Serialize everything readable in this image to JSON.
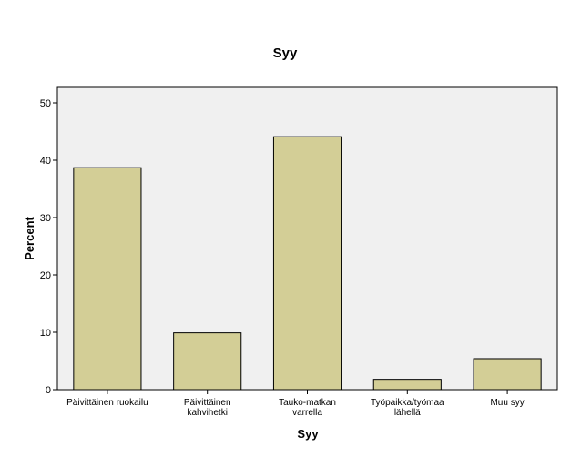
{
  "chart_data": {
    "type": "bar",
    "title": "Syy",
    "xlabel": "Syy",
    "ylabel": "Percent",
    "categories": [
      [
        "Päivittäinen ruokailu"
      ],
      [
        "Päivittäinen",
        "kahvihetki"
      ],
      [
        "Tauko-matkan",
        "varrella"
      ],
      [
        "Työpaikka/työmaa",
        "lähellä"
      ],
      [
        "Muu syy"
      ]
    ],
    "values": [
      38.7,
      9.9,
      44.1,
      1.8,
      5.4
    ],
    "ylim": [
      0,
      50
    ],
    "yticks": [
      0,
      10,
      20,
      30,
      40,
      50
    ],
    "bar_color": "#d3ce96",
    "plot_background": "#f0f0f0",
    "grid": false,
    "legend": "none"
  }
}
